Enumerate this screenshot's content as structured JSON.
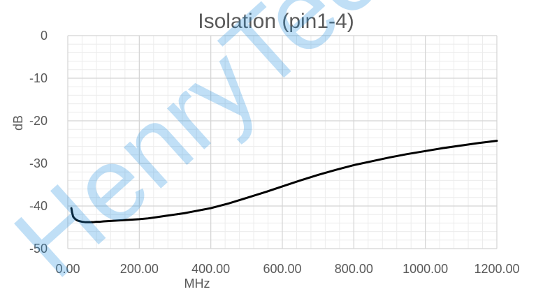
{
  "chart_data": {
    "type": "line",
    "title": "Isolation (pin1-4)",
    "xlabel": "MHz",
    "ylabel": "dB",
    "xlim": [
      0,
      1200
    ],
    "ylim": [
      -50,
      0
    ],
    "x_tick_values": [
      0,
      200,
      400,
      600,
      800,
      1000,
      1200
    ],
    "x_tick_labels": [
      "0.00",
      "200.00",
      "400.00",
      "600.00",
      "800.00",
      "1000.00",
      "1200.00"
    ],
    "y_tick_values": [
      0,
      -10,
      -20,
      -30,
      -40,
      -50
    ],
    "y_tick_labels": [
      "0",
      "-10",
      "-20",
      "-30",
      "-40",
      "-50"
    ],
    "grid": {
      "major": true,
      "minor": true
    },
    "legend": "none",
    "series": [
      {
        "color": "#000000",
        "x": [
          10,
          12,
          15,
          20,
          25,
          30,
          40,
          50,
          60,
          70,
          80,
          90,
          100,
          120,
          140,
          160,
          180,
          200,
          225,
          250,
          275,
          300,
          325,
          350,
          375,
          400,
          450,
          500,
          550,
          600,
          650,
          700,
          750,
          800,
          850,
          900,
          950,
          1000,
          1050,
          1100,
          1150,
          1200
        ],
        "y": [
          -40.5,
          -41.5,
          -42.5,
          -43.0,
          -43.3,
          -43.5,
          -43.7,
          -43.8,
          -43.8,
          -43.8,
          -43.7,
          -43.7,
          -43.6,
          -43.5,
          -43.4,
          -43.3,
          -43.2,
          -43.1,
          -42.9,
          -42.6,
          -42.3,
          -42.0,
          -41.7,
          -41.3,
          -40.9,
          -40.5,
          -39.4,
          -38.1,
          -36.8,
          -35.4,
          -34.0,
          -32.7,
          -31.5,
          -30.4,
          -29.5,
          -28.6,
          -27.8,
          -27.1,
          -26.4,
          -25.8,
          -25.2,
          -24.7
        ]
      }
    ]
  },
  "watermark": {
    "text": "HenryTech",
    "color": "#1f8fe0"
  }
}
